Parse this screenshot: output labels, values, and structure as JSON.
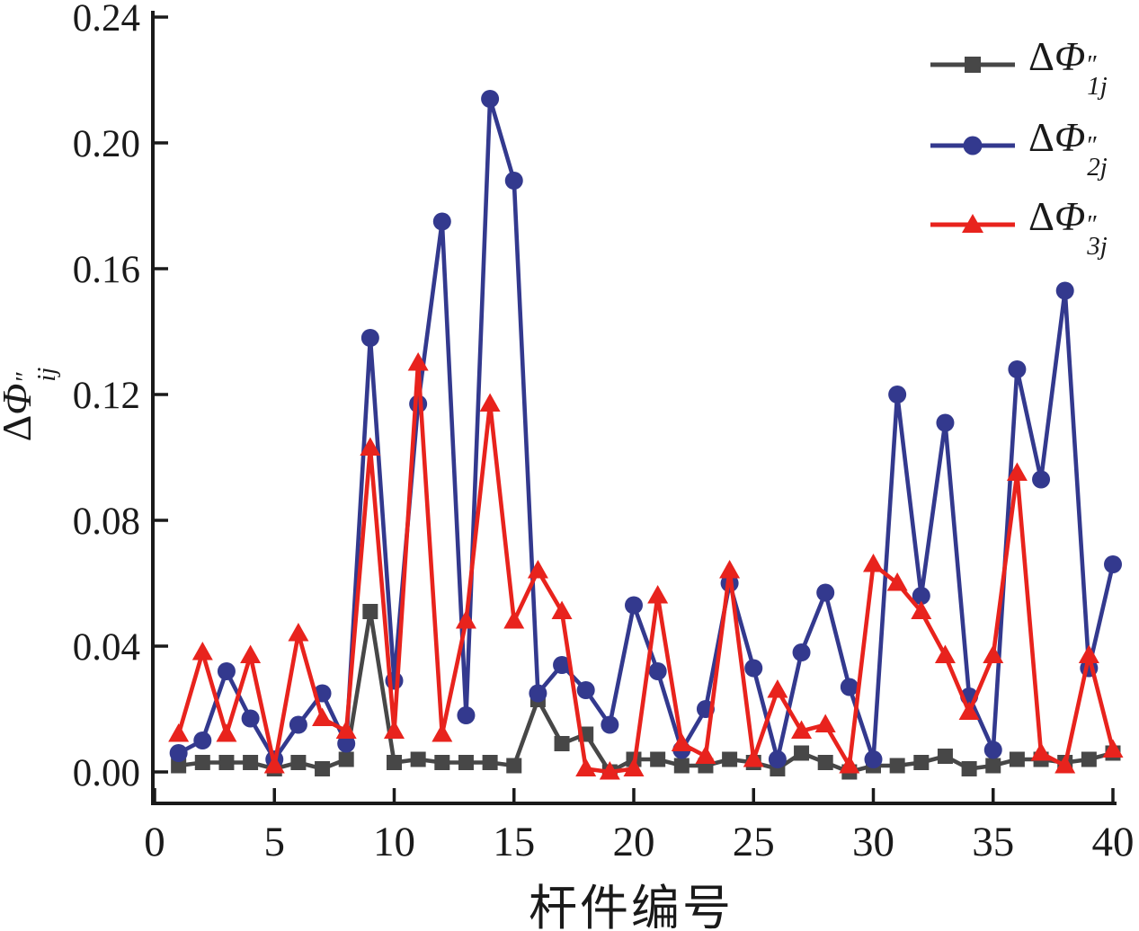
{
  "chart_data": {
    "type": "line",
    "title": "",
    "xlabel": "杆件编号",
    "ylabel": {
      "delta": "Δ",
      "phi": "Φ",
      "primes": "″",
      "sub": "ij"
    },
    "x_tick_labels": [
      "0",
      "5",
      "10",
      "15",
      "20",
      "25",
      "30",
      "35",
      "40"
    ],
    "y_tick_labels": [
      "0.00",
      "0.04",
      "0.08",
      "0.12",
      "0.16",
      "0.20",
      "0.24"
    ],
    "xlim": [
      0,
      40.2
    ],
    "ylim": [
      -0.01,
      0.243
    ],
    "grid": false,
    "legend_position": "top-right",
    "axis_color": "#1a1a1a",
    "background_color": "#ffffff",
    "x": [
      1,
      2,
      3,
      4,
      5,
      6,
      7,
      8,
      9,
      10,
      11,
      12,
      13,
      14,
      15,
      16,
      17,
      18,
      19,
      20,
      21,
      22,
      23,
      24,
      25,
      26,
      27,
      28,
      29,
      30,
      31,
      32,
      33,
      34,
      35,
      36,
      37,
      38,
      39,
      40
    ],
    "series": [
      {
        "name": "delta-phi-1j",
        "delta": "Δ",
        "phi": "Φ",
        "primes": "″",
        "sub": "1j",
        "color": "#474747",
        "marker": "square",
        "values": [
          0.002,
          0.003,
          0.003,
          0.003,
          0.001,
          0.003,
          0.001,
          0.004,
          0.051,
          0.003,
          0.004,
          0.003,
          0.003,
          0.003,
          0.002,
          0.023,
          0.009,
          0.012,
          0.0,
          0.004,
          0.004,
          0.002,
          0.002,
          0.004,
          0.003,
          0.001,
          0.006,
          0.003,
          0.0,
          0.002,
          0.002,
          0.003,
          0.005,
          0.001,
          0.002,
          0.004,
          0.004,
          0.003,
          0.004,
          0.006
        ]
      },
      {
        "name": "delta-phi-2j",
        "delta": "Δ",
        "phi": "Φ",
        "primes": "″",
        "sub": "2j",
        "color": "#33398e",
        "marker": "circle",
        "values": [
          0.006,
          0.01,
          0.032,
          0.017,
          0.004,
          0.015,
          0.025,
          0.009,
          0.138,
          0.029,
          0.117,
          0.175,
          0.018,
          0.214,
          0.188,
          0.025,
          0.034,
          0.026,
          0.015,
          0.053,
          0.032,
          0.007,
          0.02,
          0.06,
          0.033,
          0.004,
          0.038,
          0.057,
          0.027,
          0.004,
          0.12,
          0.056,
          0.111,
          0.024,
          0.007,
          0.128,
          0.093,
          0.153,
          0.033,
          0.066
        ]
      },
      {
        "name": "delta-phi-3j",
        "delta": "Δ",
        "phi": "Φ",
        "primes": "″",
        "sub": "3j",
        "color": "#e8231d",
        "marker": "triangle",
        "values": [
          0.012,
          0.038,
          0.012,
          0.037,
          0.002,
          0.044,
          0.017,
          0.013,
          0.103,
          0.013,
          0.13,
          0.012,
          0.048,
          0.117,
          0.048,
          0.064,
          0.051,
          0.001,
          0.0,
          0.001,
          0.056,
          0.009,
          0.005,
          0.064,
          0.004,
          0.026,
          0.013,
          0.015,
          0.002,
          0.066,
          0.06,
          0.051,
          0.037,
          0.019,
          0.037,
          0.095,
          0.006,
          0.002,
          0.037,
          0.007
        ]
      }
    ]
  }
}
